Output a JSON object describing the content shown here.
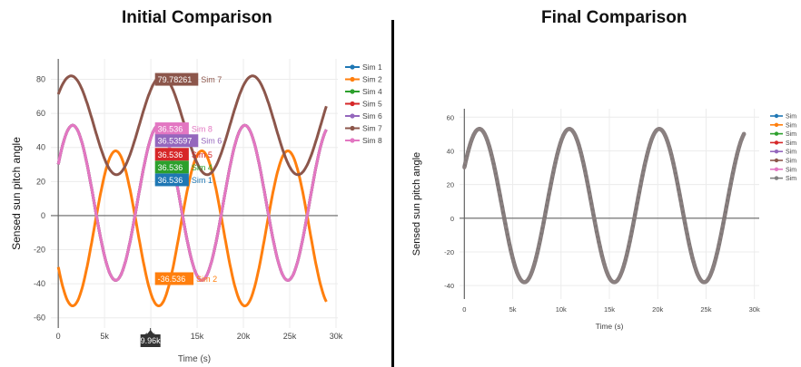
{
  "panel_titles": [
    "Initial Comparison",
    "Final Comparison"
  ],
  "chart_data": [
    {
      "type": "line",
      "title": "Initial Comparison",
      "xlabel": "Time (s)",
      "ylabel": "Sensed sun pitch angle",
      "xlim": [
        -800,
        30200
      ],
      "ylim": [
        -66,
        92
      ],
      "xticks": [
        0,
        5000,
        10000,
        15000,
        20000,
        25000,
        30000
      ],
      "xtick_labels": [
        "0",
        "5k",
        "10k",
        "15k",
        "20k",
        "25k",
        "30k"
      ],
      "yticks": [
        -60,
        -40,
        -20,
        0,
        20,
        40,
        60,
        80
      ],
      "grid": true,
      "legend_position": "right",
      "series": [
        {
          "name": "Sim 1",
          "color": "#1f77b4",
          "mean": 7.5,
          "amp": 45.5,
          "period": 9300,
          "phase": 0.52
        },
        {
          "name": "Sim 2",
          "color": "#ff7f0e",
          "mean": -7.5,
          "amp": 45.5,
          "period": 9300,
          "phase": -2.62
        },
        {
          "name": "Sim 4",
          "color": "#2ca02c",
          "mean": 7.5,
          "amp": 45.5,
          "period": 9300,
          "phase": 0.52
        },
        {
          "name": "Sim 5",
          "color": "#d62728",
          "mean": 7.5,
          "amp": 45.5,
          "period": 9300,
          "phase": 0.52
        },
        {
          "name": "Sim 6",
          "color": "#9467bd",
          "mean": 7.5,
          "amp": 45.5,
          "period": 9300,
          "phase": 0.52
        },
        {
          "name": "Sim 7",
          "color": "#8c564b",
          "mean": 53,
          "amp": 29,
          "period": 9800,
          "phase": 0.68
        },
        {
          "name": "Sim 8",
          "color": "#e377c2",
          "mean": 7.5,
          "amp": 45.5,
          "period": 9300,
          "phase": 0.52
        }
      ],
      "hover_x": 9960,
      "hover_x_label": "9.96k",
      "hover_labels": [
        {
          "value": "79.78261",
          "series": "Sim 7",
          "color": "#8c564b",
          "y": 80
        },
        {
          "value": "36.536",
          "series": "Sim 8",
          "color": "#e377c2",
          "y": 51
        },
        {
          "value": "36.53597",
          "series": "Sim 6",
          "color": "#9467bd",
          "y": 44
        },
        {
          "value": "36.536",
          "series": "Sim 5",
          "color": "#d62728",
          "y": 36
        },
        {
          "value": "36.536",
          "series": "Sim 4",
          "color": "#2ca02c",
          "y": 28.5
        },
        {
          "value": "36.536",
          "series": "Sim 1",
          "color": "#1f77b4",
          "y": 21
        },
        {
          "value": "-36.536",
          "series": "Sim 2",
          "color": "#ff7f0e",
          "y": -37
        }
      ]
    },
    {
      "type": "line",
      "title": "Final Comparison",
      "xlabel": "Time (s)",
      "ylabel": "Sensed sun pitch angle",
      "xlim": [
        -500,
        30500
      ],
      "ylim": [
        -48,
        65
      ],
      "xticks": [
        0,
        5000,
        10000,
        15000,
        20000,
        25000,
        30000
      ],
      "xtick_labels": [
        "0",
        "5k",
        "10k",
        "15k",
        "20k",
        "25k",
        "30k"
      ],
      "yticks": [
        -40,
        -20,
        0,
        20,
        40,
        60
      ],
      "grid": true,
      "legend_position": "right",
      "legend_entries": [
        "Sim",
        "Sim",
        "Sim",
        "Sim",
        "Sim",
        "Sim",
        "Sim",
        "Sim"
      ],
      "legend_colors": [
        "#1f77b4",
        "#ff7f0e",
        "#2ca02c",
        "#d62728",
        "#9467bd",
        "#8c564b",
        "#e377c2",
        "#7f7f7f"
      ],
      "series_color": "#7f7777",
      "mean": 7.5,
      "amp": 45.5,
      "period": 9300,
      "phase": 0.52
    }
  ]
}
